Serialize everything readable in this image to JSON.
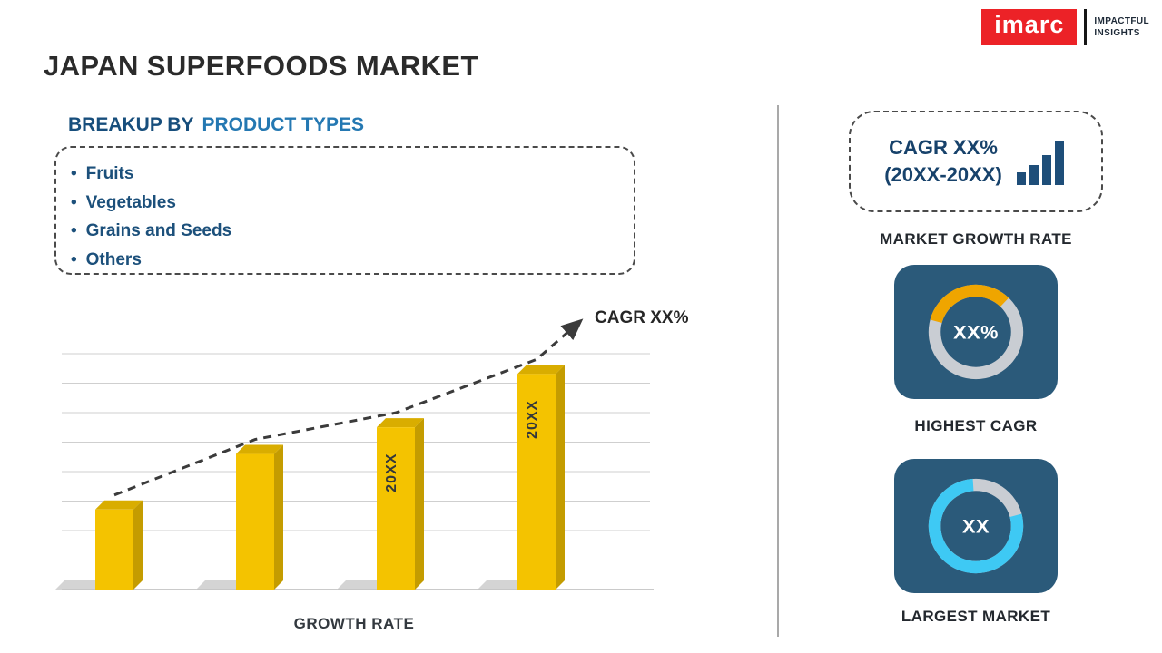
{
  "title": "JAPAN SUPERFOODS MARKET",
  "logo": {
    "brand": "imarc",
    "tagline_line1": "IMPACTFUL",
    "tagline_line2": "INSIGHTS",
    "brand_color": "#EC2227"
  },
  "breakup": {
    "heading_prefix": "BREAKUP BY",
    "heading_highlight": "PRODUCT TYPES",
    "bullet_char": "•",
    "items": [
      "Fruits",
      "Vegetables",
      "Grains and Seeds",
      "Others"
    ]
  },
  "chart_data": {
    "type": "bar",
    "title": "",
    "xlabel": "GROWTH RATE",
    "ylabel": "",
    "categories": [
      "",
      "",
      "",
      ""
    ],
    "values": [
      36,
      61,
      73,
      97
    ],
    "ylim": [
      0,
      100
    ],
    "grid": true,
    "bar_labels": [
      "",
      "",
      "20XX",
      "20XX"
    ],
    "trend_label": "CAGR XX%",
    "trend_style": "dashed-arrow",
    "bar_color": "#F4C300",
    "bar_side_color": "#C49C00",
    "bar_top_color": "#D9AD00",
    "shadow_color": "#C6C6C6",
    "trend_color": "#3B3B3B",
    "label_color": "#33373B",
    "grid_color": "#CFCFCF"
  },
  "right_panel": {
    "market_growth_rate": {
      "card_line1": "CAGR XX%",
      "card_line2": "(20XX-20XX)",
      "caption": "MARKET GROWTH RATE"
    },
    "highest_cagr": {
      "center_value": "XX%",
      "caption": "HIGHEST CAGR",
      "arc_percent": 33,
      "arc_rotation": 195,
      "arc_color": "#EFA500",
      "ring_color": "#C9CDD3",
      "tile_color": "#2B5A7A"
    },
    "largest_market": {
      "center_value": "XX",
      "caption": "LARGEST MARKET",
      "arc_percent": 78,
      "arc_rotation": -15,
      "arc_color": "#3EC9F4",
      "ring_color": "#C9CDD3",
      "tile_color": "#2B5A7A"
    }
  },
  "colors": {
    "title": "#2B2B2B",
    "heading_dark": "#174E7C",
    "heading_light": "#2478B2",
    "list_text": "#1C507B",
    "caption": "#23282E",
    "card_text": "#17426B",
    "tile": "#2B5A7A",
    "divider": "#A9A9A9",
    "logo_red": "#EC2227"
  }
}
